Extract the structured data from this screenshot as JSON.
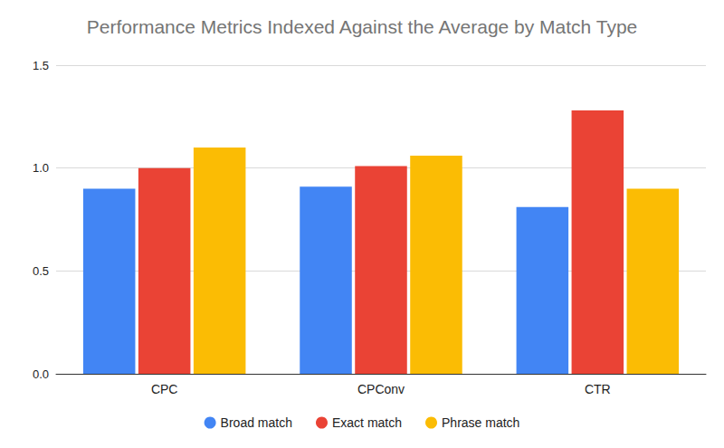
{
  "chart_data": {
    "type": "bar",
    "title": "Performance Metrics Indexed Against the Average by Match Type",
    "categories": [
      "CPC",
      "CPConv",
      "CTR"
    ],
    "series": [
      {
        "name": "Broad match",
        "color": "#4285f4",
        "values": [
          0.9,
          0.91,
          0.81
        ]
      },
      {
        "name": "Exact match",
        "color": "#ea4335",
        "values": [
          1.0,
          1.01,
          1.28
        ]
      },
      {
        "name": "Phrase match",
        "color": "#fbbc04",
        "values": [
          1.1,
          1.06,
          0.9
        ]
      }
    ],
    "ylim": [
      0,
      1.5
    ],
    "yticks": [
      {
        "value": 0,
        "label": "0.0"
      },
      0.5,
      {
        "value": 1,
        "label": "1.0"
      },
      1.5
    ],
    "grid": true,
    "legend": "bottom"
  }
}
